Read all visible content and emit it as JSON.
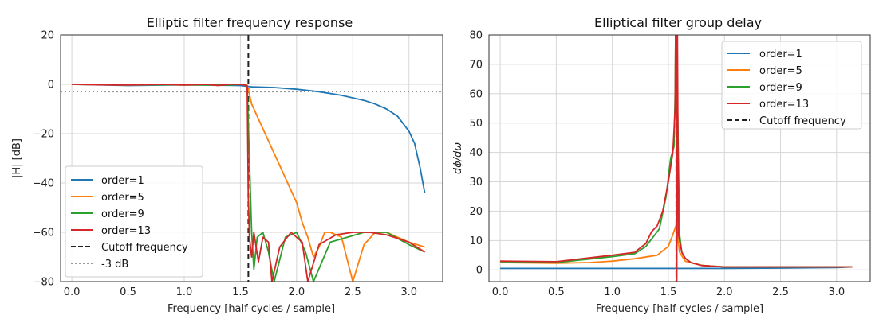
{
  "chart_data": [
    {
      "type": "line",
      "title": "Elliptic filter frequency response",
      "xlabel": "Frequency [half-cycles / sample]",
      "ylabel": "|H| [dB]",
      "xlim": [
        -0.1,
        3.3
      ],
      "ylim": [
        -80,
        20
      ],
      "xticks": [
        "0.0",
        "0.5",
        "1.0",
        "1.5",
        "2.0",
        "2.5",
        "3.0"
      ],
      "yticks": [
        "20",
        "0",
        "−20",
        "−40",
        "−60",
        "−80"
      ],
      "grid": true,
      "legend_position": "lower-left",
      "series": [
        {
          "name": "order=1",
          "color": "#1f77b4",
          "x": [
            0,
            0.5,
            1.0,
            1.5,
            1.6,
            1.8,
            2.0,
            2.2,
            2.4,
            2.6,
            2.7,
            2.8,
            2.9,
            3.0,
            3.05,
            3.1,
            3.14
          ],
          "y": [
            0,
            -0.5,
            -0.2,
            -0.5,
            -1,
            -1.3,
            -2,
            -3,
            -4.5,
            -6.5,
            -8,
            -10,
            -13,
            -19,
            -24,
            -34,
            -44
          ]
        },
        {
          "name": "order=5",
          "color": "#ff7f0e",
          "x": [
            0,
            0.5,
            1.0,
            1.3,
            1.5,
            1.55,
            1.57,
            1.6,
            1.7,
            1.8,
            1.9,
            2.0,
            2.05,
            2.1,
            2.15,
            2.2,
            2.25,
            2.3,
            2.4,
            2.5,
            2.6,
            2.7,
            2.8,
            2.9,
            3.0,
            3.14
          ],
          "y": [
            0,
            -0.3,
            0,
            -0.3,
            0,
            0,
            -2,
            -8,
            -18,
            -28,
            -38,
            -48,
            -56,
            -62,
            -70,
            -66,
            -60,
            -60,
            -62,
            -80,
            -65,
            -60,
            -60,
            -62,
            -64,
            -66
          ]
        },
        {
          "name": "order=9",
          "color": "#2ca02c",
          "x": [
            0,
            0.5,
            1.0,
            1.4,
            1.5,
            1.56,
            1.58,
            1.6,
            1.62,
            1.65,
            1.7,
            1.75,
            1.8,
            1.9,
            2.0,
            2.08,
            2.15,
            2.3,
            2.45,
            2.6,
            2.8,
            3.0,
            3.14
          ],
          "y": [
            0,
            0,
            -0.3,
            -0.3,
            0,
            -0.5,
            -30,
            -60,
            -75,
            -62,
            -60,
            -68,
            -80,
            -62,
            -60,
            -68,
            -80,
            -64,
            -62,
            -60,
            -60,
            -65,
            -68
          ]
        },
        {
          "name": "order=13",
          "color": "#d62728",
          "x": [
            0,
            0.4,
            0.8,
            1.0,
            1.2,
            1.3,
            1.4,
            1.5,
            1.56,
            1.57,
            1.58,
            1.6,
            1.62,
            1.66,
            1.7,
            1.75,
            1.78,
            1.85,
            1.95,
            2.05,
            2.1,
            2.2,
            2.35,
            2.5,
            2.65,
            2.8,
            3.0,
            3.14
          ],
          "y": [
            0,
            -0.3,
            0,
            -0.3,
            0,
            -0.5,
            0,
            0,
            -0.5,
            -45,
            -62,
            -70,
            -60,
            -72,
            -62,
            -64,
            -80,
            -66,
            -60,
            -64,
            -80,
            -65,
            -61,
            -60,
            -60,
            -61,
            -64,
            -68
          ]
        }
      ],
      "reference_lines": [
        {
          "name": "Cutoff frequency",
          "orientation": "vertical",
          "value": 1.5708,
          "style": "dashed",
          "color": "#222222"
        },
        {
          "name": "-3 dB",
          "orientation": "horizontal",
          "value": -3,
          "style": "dotted",
          "color": "#999999"
        }
      ]
    },
    {
      "type": "line",
      "title": "Elliptical filter group delay",
      "xlabel": "Frequency [half-cycles / sample]",
      "ylabel": "dϕ/dω",
      "xlim": [
        -0.1,
        3.3
      ],
      "ylim": [
        -4,
        80
      ],
      "xticks": [
        "0.0",
        "0.5",
        "1.0",
        "1.5",
        "2.0",
        "2.5",
        "3.0"
      ],
      "yticks": [
        "80",
        "70",
        "60",
        "50",
        "40",
        "30",
        "20",
        "10",
        "0"
      ],
      "grid": true,
      "legend_position": "top-right",
      "series": [
        {
          "name": "order=1",
          "color": "#1f77b4",
          "x": [
            0,
            0.5,
            1.0,
            1.5,
            2.0,
            2.5,
            3.0,
            3.14
          ],
          "y": [
            0.5,
            0.5,
            0.5,
            0.5,
            0.5,
            0.6,
            0.8,
            1.0
          ]
        },
        {
          "name": "order=5",
          "color": "#ff7f0e",
          "x": [
            0,
            0.5,
            0.8,
            1.0,
            1.2,
            1.4,
            1.5,
            1.54,
            1.57,
            1.6,
            1.65,
            1.8,
            2.0,
            2.5,
            3.14
          ],
          "y": [
            2.5,
            2.3,
            2.5,
            3.0,
            3.8,
            5,
            8,
            12,
            15.5,
            6,
            3,
            1.5,
            1,
            1,
            1
          ]
        },
        {
          "name": "order=9",
          "color": "#2ca02c",
          "x": [
            0,
            0.5,
            1.0,
            1.2,
            1.3,
            1.38,
            1.42,
            1.48,
            1.52,
            1.55,
            1.56,
            1.565,
            1.57,
            1.6,
            1.62,
            1.65,
            1.7,
            1.8,
            2.0,
            2.5,
            3.14
          ],
          "y": [
            2.8,
            2.5,
            4.5,
            5.5,
            8,
            12,
            14,
            25,
            38,
            42,
            60,
            85,
            85,
            12,
            6,
            4,
            2.5,
            1.5,
            1,
            1,
            1
          ]
        },
        {
          "name": "order=13",
          "color": "#d62728",
          "x": [
            0,
            0.5,
            1.0,
            1.2,
            1.3,
            1.35,
            1.4,
            1.45,
            1.5,
            1.54,
            1.56,
            1.565,
            1.57,
            1.575,
            1.58,
            1.59,
            1.62,
            1.65,
            1.7,
            1.8,
            2.0,
            2.5,
            3.14
          ],
          "y": [
            3,
            2.8,
            5,
            6,
            9,
            13,
            15,
            20,
            30,
            40,
            55,
            85,
            85,
            -4,
            85,
            12,
            6,
            4,
            2.5,
            1.5,
            1,
            1,
            1
          ]
        }
      ],
      "reference_lines": [
        {
          "name": "Cutoff frequency",
          "orientation": "vertical",
          "value": 1.5708,
          "style": "dashed",
          "color": "#222222"
        }
      ]
    }
  ]
}
